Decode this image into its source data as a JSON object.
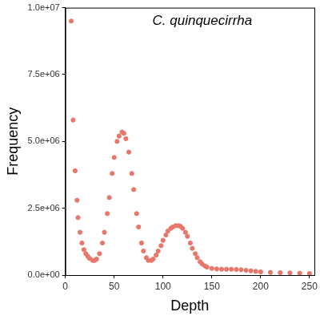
{
  "chart_data": {
    "type": "scatter",
    "title": "C. quinquecirrha",
    "x_label": "Depth",
    "y_label": "Frequency",
    "x": [
      6,
      8,
      10,
      12,
      13,
      15,
      17,
      19,
      21,
      23,
      25,
      28,
      30,
      32,
      35,
      38,
      40,
      43,
      45,
      48,
      50,
      53,
      55,
      58,
      60,
      62,
      65,
      68,
      70,
      73,
      75,
      78,
      80,
      83,
      85,
      88,
      90,
      93,
      95,
      98,
      100,
      103,
      105,
      108,
      110,
      113,
      116,
      118,
      120,
      123,
      125,
      128,
      130,
      133,
      135,
      138,
      140,
      143,
      145,
      150,
      155,
      160,
      165,
      170,
      175,
      180,
      185,
      190,
      195,
      200,
      210,
      220,
      230,
      240,
      250
    ],
    "values": [
      9500000,
      5800000,
      3900000,
      2800000,
      2150000,
      1600000,
      1200000,
      950000,
      800000,
      700000,
      620000,
      550000,
      550000,
      600000,
      800000,
      1200000,
      1600000,
      2300000,
      2900000,
      3800000,
      4400000,
      5000000,
      5200000,
      5350000,
      5300000,
      5100000,
      4600000,
      3800000,
      3200000,
      2300000,
      1800000,
      1200000,
      900000,
      650000,
      550000,
      550000,
      600000,
      750000,
      900000,
      1100000,
      1300000,
      1500000,
      1650000,
      1750000,
      1800000,
      1850000,
      1850000,
      1820000,
      1750000,
      1600000,
      1450000,
      1200000,
      1000000,
      800000,
      650000,
      500000,
      420000,
      340000,
      300000,
      250000,
      230000,
      220000,
      220000,
      220000,
      210000,
      200000,
      180000,
      160000,
      140000,
      120000,
      100000,
      90000,
      80000,
      70000,
      60000
    ],
    "color": "#e8766a",
    "marker": "circle",
    "xlim": [
      0,
      255
    ],
    "xticks": [
      0,
      50,
      100,
      150,
      200,
      250
    ],
    "ylim": [
      0,
      10000000
    ],
    "yticks": [
      {
        "value": 0,
        "label": "0.0e+00"
      },
      {
        "value": 2500000,
        "label": "2.5e+06"
      },
      {
        "value": 5000000,
        "label": "5.0e+06"
      },
      {
        "value": 7500000,
        "label": "7.5e+06"
      },
      {
        "value": 10000000,
        "label": "1.0e+07"
      }
    ],
    "grid": false,
    "legend": false
  }
}
